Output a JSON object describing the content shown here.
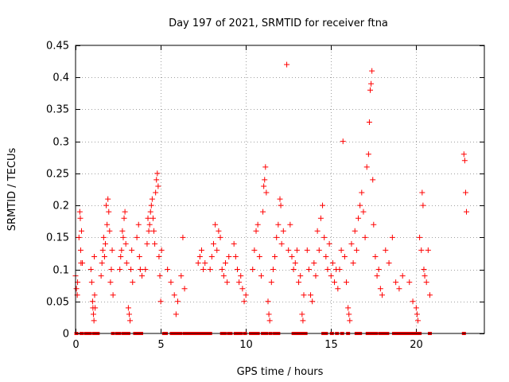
{
  "chart_data": {
    "type": "scatter",
    "title": "Day 197 of 2021, SRMTID for receiver ftna",
    "xlabel": "GPS time / hours",
    "ylabel": "SRMTID / TECUs",
    "xlim": [
      0,
      24
    ],
    "ylim": [
      0,
      0.45
    ],
    "grid": true,
    "marker": "+",
    "color": "#ff0000",
    "x_ticks": [
      0,
      5,
      10,
      15,
      20
    ],
    "x_tick_labels": [
      "0",
      "5",
      "10",
      "15",
      "20"
    ],
    "y_ticks": [
      0,
      0.05,
      0.1,
      0.15,
      0.2,
      0.25,
      0.3,
      0.35,
      0.4,
      0.45
    ],
    "y_tick_labels": [
      "0",
      "0.05",
      "0.1",
      "0.15",
      "0.2",
      "0.25",
      "0.3",
      "0.35",
      "0.4",
      "0.45"
    ],
    "series": [
      {
        "name": "SRMTID",
        "points": [
          [
            0.0,
            0.09
          ],
          [
            0.05,
            0.07
          ],
          [
            0.1,
            0.06
          ],
          [
            0.12,
            0.08
          ],
          [
            0.2,
            0.15
          ],
          [
            0.25,
            0.19
          ],
          [
            0.28,
            0.18
          ],
          [
            0.3,
            0.13
          ],
          [
            0.32,
            0.11
          ],
          [
            0.35,
            0.16
          ],
          [
            0.4,
            0.11
          ],
          [
            0.9,
            0.1
          ],
          [
            0.95,
            0.08
          ],
          [
            1.0,
            0.05
          ],
          [
            1.02,
            0.04
          ],
          [
            1.05,
            0.03
          ],
          [
            1.08,
            0.02
          ],
          [
            1.1,
            0.12
          ],
          [
            1.12,
            0.06
          ],
          [
            1.15,
            0.04
          ],
          [
            1.5,
            0.09
          ],
          [
            1.55,
            0.11
          ],
          [
            1.6,
            0.13
          ],
          [
            1.65,
            0.15
          ],
          [
            1.7,
            0.12
          ],
          [
            1.75,
            0.14
          ],
          [
            1.8,
            0.2
          ],
          [
            1.85,
            0.17
          ],
          [
            1.9,
            0.21
          ],
          [
            1.95,
            0.19
          ],
          [
            2.0,
            0.16
          ],
          [
            2.05,
            0.08
          ],
          [
            2.1,
            0.1
          ],
          [
            2.15,
            0.13
          ],
          [
            2.2,
            0.06
          ],
          [
            2.6,
            0.1
          ],
          [
            2.65,
            0.12
          ],
          [
            2.7,
            0.13
          ],
          [
            2.75,
            0.16
          ],
          [
            2.8,
            0.15
          ],
          [
            2.85,
            0.18
          ],
          [
            2.9,
            0.19
          ],
          [
            2.95,
            0.14
          ],
          [
            3.0,
            0.11
          ],
          [
            3.1,
            0.04
          ],
          [
            3.15,
            0.03
          ],
          [
            3.2,
            0.02
          ],
          [
            3.25,
            0.1
          ],
          [
            3.3,
            0.13
          ],
          [
            3.35,
            0.08
          ],
          [
            3.6,
            0.15
          ],
          [
            3.7,
            0.17
          ],
          [
            3.75,
            0.12
          ],
          [
            3.8,
            0.1
          ],
          [
            3.9,
            0.09
          ],
          [
            4.1,
            0.1
          ],
          [
            4.2,
            0.14
          ],
          [
            4.25,
            0.18
          ],
          [
            4.3,
            0.16
          ],
          [
            4.35,
            0.17
          ],
          [
            4.4,
            0.19
          ],
          [
            4.45,
            0.2
          ],
          [
            4.5,
            0.21
          ],
          [
            4.55,
            0.18
          ],
          [
            4.6,
            0.16
          ],
          [
            4.65,
            0.14
          ],
          [
            4.7,
            0.22
          ],
          [
            4.75,
            0.24
          ],
          [
            4.8,
            0.25
          ],
          [
            4.85,
            0.23
          ],
          [
            4.9,
            0.12
          ],
          [
            4.95,
            0.09
          ],
          [
            5.0,
            0.05
          ],
          [
            5.05,
            0.13
          ],
          [
            5.4,
            0.1
          ],
          [
            5.6,
            0.08
          ],
          [
            5.8,
            0.06
          ],
          [
            5.9,
            0.03
          ],
          [
            6.0,
            0.05
          ],
          [
            6.2,
            0.09
          ],
          [
            6.3,
            0.15
          ],
          [
            6.4,
            0.07
          ],
          [
            7.2,
            0.11
          ],
          [
            7.3,
            0.12
          ],
          [
            7.4,
            0.13
          ],
          [
            7.5,
            0.1
          ],
          [
            7.6,
            0.11
          ],
          [
            7.9,
            0.1
          ],
          [
            8.0,
            0.12
          ],
          [
            8.1,
            0.14
          ],
          [
            8.2,
            0.17
          ],
          [
            8.3,
            0.13
          ],
          [
            8.4,
            0.16
          ],
          [
            8.5,
            0.15
          ],
          [
            8.6,
            0.1
          ],
          [
            8.7,
            0.09
          ],
          [
            8.8,
            0.11
          ],
          [
            8.9,
            0.08
          ],
          [
            9.0,
            0.12
          ],
          [
            9.3,
            0.14
          ],
          [
            9.4,
            0.12
          ],
          [
            9.5,
            0.1
          ],
          [
            9.6,
            0.08
          ],
          [
            9.7,
            0.09
          ],
          [
            9.8,
            0.07
          ],
          [
            9.9,
            0.05
          ],
          [
            10.0,
            0.06
          ],
          [
            10.4,
            0.1
          ],
          [
            10.5,
            0.13
          ],
          [
            10.6,
            0.16
          ],
          [
            10.7,
            0.17
          ],
          [
            10.8,
            0.12
          ],
          [
            10.9,
            0.09
          ],
          [
            11.0,
            0.19
          ],
          [
            11.05,
            0.23
          ],
          [
            11.1,
            0.24
          ],
          [
            11.15,
            0.26
          ],
          [
            11.2,
            0.22
          ],
          [
            11.3,
            0.05
          ],
          [
            11.35,
            0.03
          ],
          [
            11.4,
            0.02
          ],
          [
            11.5,
            0.08
          ],
          [
            11.6,
            0.1
          ],
          [
            11.7,
            0.12
          ],
          [
            11.8,
            0.15
          ],
          [
            11.9,
            0.17
          ],
          [
            12.0,
            0.21
          ],
          [
            12.05,
            0.2
          ],
          [
            12.1,
            0.14
          ],
          [
            12.2,
            0.16
          ],
          [
            12.4,
            0.42
          ],
          [
            12.5,
            0.13
          ],
          [
            12.6,
            0.17
          ],
          [
            12.7,
            0.12
          ],
          [
            12.8,
            0.1
          ],
          [
            12.9,
            0.11
          ],
          [
            13.0,
            0.13
          ],
          [
            13.1,
            0.08
          ],
          [
            13.2,
            0.09
          ],
          [
            13.3,
            0.03
          ],
          [
            13.35,
            0.02
          ],
          [
            13.4,
            0.06
          ],
          [
            13.6,
            0.13
          ],
          [
            13.7,
            0.1
          ],
          [
            13.8,
            0.06
          ],
          [
            13.9,
            0.05
          ],
          [
            14.0,
            0.11
          ],
          [
            14.1,
            0.09
          ],
          [
            14.2,
            0.16
          ],
          [
            14.3,
            0.13
          ],
          [
            14.4,
            0.18
          ],
          [
            14.5,
            0.2
          ],
          [
            14.6,
            0.15
          ],
          [
            14.7,
            0.12
          ],
          [
            14.8,
            0.1
          ],
          [
            14.9,
            0.14
          ],
          [
            15.0,
            0.09
          ],
          [
            15.1,
            0.11
          ],
          [
            15.2,
            0.08
          ],
          [
            15.3,
            0.1
          ],
          [
            15.4,
            0.07
          ],
          [
            15.5,
            0.1
          ],
          [
            15.6,
            0.13
          ],
          [
            15.7,
            0.3
          ],
          [
            15.8,
            0.12
          ],
          [
            15.9,
            0.08
          ],
          [
            16.0,
            0.04
          ],
          [
            16.05,
            0.03
          ],
          [
            16.1,
            0.02
          ],
          [
            16.2,
            0.14
          ],
          [
            16.3,
            0.11
          ],
          [
            16.4,
            0.16
          ],
          [
            16.5,
            0.13
          ],
          [
            16.6,
            0.18
          ],
          [
            16.7,
            0.2
          ],
          [
            16.8,
            0.22
          ],
          [
            16.9,
            0.19
          ],
          [
            17.0,
            0.15
          ],
          [
            17.1,
            0.26
          ],
          [
            17.2,
            0.28
          ],
          [
            17.25,
            0.33
          ],
          [
            17.3,
            0.38
          ],
          [
            17.35,
            0.39
          ],
          [
            17.4,
            0.41
          ],
          [
            17.45,
            0.24
          ],
          [
            17.5,
            0.17
          ],
          [
            17.6,
            0.12
          ],
          [
            17.7,
            0.09
          ],
          [
            17.8,
            0.1
          ],
          [
            17.9,
            0.07
          ],
          [
            18.0,
            0.06
          ],
          [
            18.2,
            0.13
          ],
          [
            18.4,
            0.11
          ],
          [
            18.6,
            0.15
          ],
          [
            18.8,
            0.08
          ],
          [
            19.0,
            0.07
          ],
          [
            19.2,
            0.09
          ],
          [
            19.6,
            0.08
          ],
          [
            19.8,
            0.05
          ],
          [
            20.0,
            0.04
          ],
          [
            20.05,
            0.03
          ],
          [
            20.1,
            0.02
          ],
          [
            20.2,
            0.15
          ],
          [
            20.3,
            0.13
          ],
          [
            20.35,
            0.22
          ],
          [
            20.4,
            0.2
          ],
          [
            20.45,
            0.1
          ],
          [
            20.5,
            0.09
          ],
          [
            20.6,
            0.08
          ],
          [
            20.7,
            0.13
          ],
          [
            20.8,
            0.06
          ],
          [
            22.8,
            0.28
          ],
          [
            22.85,
            0.27
          ],
          [
            22.9,
            0.22
          ],
          [
            22.95,
            0.19
          ]
        ],
        "zero_points": [
          0.05,
          0.35,
          0.6,
          0.7,
          0.85,
          1.1,
          1.3,
          2.2,
          2.45,
          2.55,
          2.8,
          2.95,
          3.1,
          3.5,
          3.6,
          3.7,
          3.85,
          5.2,
          5.3,
          5.65,
          5.75,
          5.95,
          6.15,
          6.4,
          6.55,
          6.7,
          6.85,
          7.0,
          7.15,
          7.3,
          7.45,
          7.6,
          7.75,
          7.9,
          8.6,
          8.75,
          9.0,
          9.1,
          9.4,
          9.55,
          9.7,
          9.95,
          10.3,
          10.45,
          10.6,
          10.7,
          11.0,
          11.2,
          11.45,
          11.7,
          11.9,
          12.8,
          13.0,
          13.15,
          13.3,
          13.5,
          14.55,
          14.7,
          15.05,
          15.35,
          15.65,
          16.0,
          16.5,
          16.7,
          17.15,
          17.35,
          17.5,
          17.65,
          17.9,
          18.1,
          18.3,
          18.7,
          18.85,
          19.0,
          19.2,
          19.4,
          19.6,
          19.8,
          20.0,
          20.2,
          20.8,
          22.8
        ]
      }
    ]
  }
}
